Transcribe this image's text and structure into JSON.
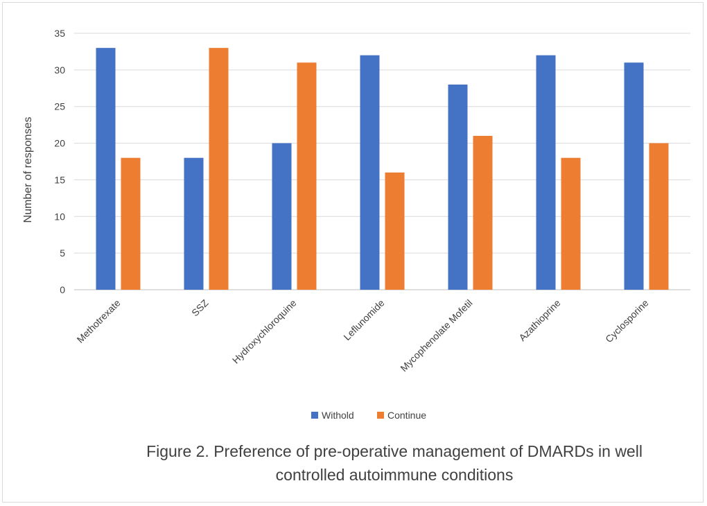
{
  "chart_data": {
    "type": "bar",
    "categories": [
      "Methotrexate",
      "SSZ",
      "Hydroxychloroquine",
      "Leflunomide",
      "Mycophenolate Mofetil",
      "Azathioprine",
      "Cyclosporine"
    ],
    "series": [
      {
        "name": "Withold",
        "values": [
          33,
          18,
          20,
          32,
          28,
          32,
          31
        ],
        "color": "#4472C4"
      },
      {
        "name": "Continue",
        "values": [
          18,
          33,
          31,
          16,
          21,
          18,
          20
        ],
        "color": "#ED7D31"
      }
    ],
    "ylabel": "Number of responses",
    "ylim": [
      0,
      35
    ],
    "yticks": [
      0,
      5,
      10,
      15,
      20,
      25,
      30,
      35
    ],
    "grid": true,
    "legend_position": "bottom"
  },
  "caption": {
    "line1": "Figure 2. Preference of pre-operative management of DMARDs in well",
    "line2": "controlled autoimmune conditions"
  }
}
